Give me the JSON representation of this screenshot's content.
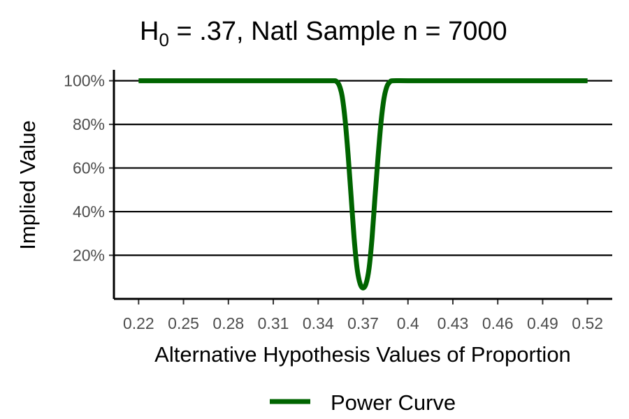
{
  "chart_data": {
    "type": "line",
    "title": {
      "prefix": "H",
      "subscript": "0",
      "rest": " = .37, Natl Sample n = 7000"
    },
    "xlabel": "Alternative Hypothesis Values of Proportion",
    "ylabel": "Implied Value",
    "x_ticks": [
      0.22,
      0.25,
      0.28,
      0.31,
      0.34,
      0.37,
      0.4,
      0.43,
      0.46,
      0.49,
      0.52
    ],
    "x_tick_labels": [
      "0.22",
      "0.25",
      "0.28",
      "0.31",
      "0.34",
      "0.37",
      "0.4",
      "0.43",
      "0.46",
      "0.49",
      "0.52"
    ],
    "y_ticks": [
      0.2,
      0.4,
      0.6,
      0.8,
      1.0
    ],
    "y_tick_labels": [
      "20%",
      "40%",
      "60%",
      "80%",
      "100%"
    ],
    "xlim": [
      0.2035,
      0.5365
    ],
    "ylim": [
      0.0,
      1.05
    ],
    "grid": "horizontal major lines",
    "legend_position": "bottom",
    "series": [
      {
        "name": "Power Curve",
        "color": "#006400",
        "x": [
          0.22,
          0.25,
          0.28,
          0.31,
          0.34,
          0.35,
          0.352,
          0.354,
          0.356,
          0.358,
          0.36,
          0.362,
          0.364,
          0.366,
          0.368,
          0.37,
          0.372,
          0.374,
          0.376,
          0.378,
          0.38,
          0.382,
          0.384,
          0.386,
          0.388,
          0.39,
          0.4,
          0.43,
          0.46,
          0.49,
          0.52
        ],
        "y": [
          1.0,
          1.0,
          1.0,
          1.0,
          1.0,
          1.0,
          0.998,
          0.98,
          0.93,
          0.82,
          0.66,
          0.47,
          0.28,
          0.14,
          0.07,
          0.05,
          0.07,
          0.14,
          0.28,
          0.47,
          0.65,
          0.81,
          0.92,
          0.975,
          0.995,
          1.0,
          1.0,
          1.0,
          1.0,
          1.0,
          1.0
        ]
      }
    ]
  }
}
